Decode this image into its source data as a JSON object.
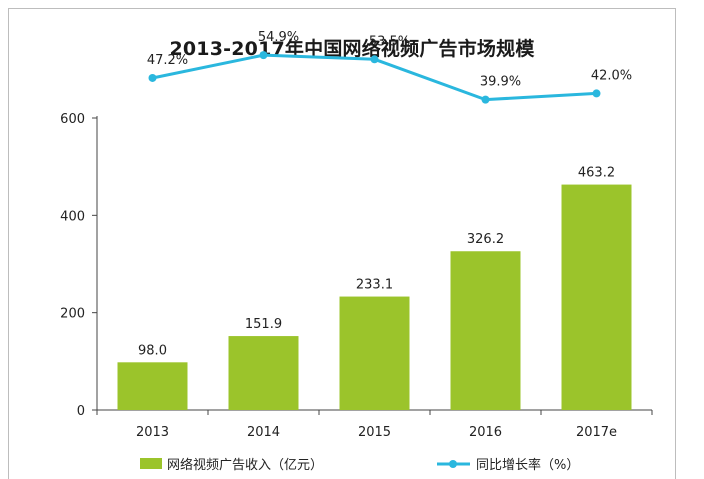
{
  "chart_data": {
    "type": "bar",
    "title": "2013-2017年中国网络视频广告市场规模",
    "categories": [
      "2013",
      "2014",
      "2015",
      "2016",
      "2017e"
    ],
    "ylim": [
      0,
      600
    ],
    "yticks": [
      0,
      200,
      400,
      600
    ],
    "grid": false,
    "legend_position": "bottom",
    "series": [
      {
        "name": "网络视频广告收入（亿元）",
        "type": "bar",
        "color": "#9bc42b",
        "values": [
          98.0,
          151.9,
          233.1,
          326.2,
          463.2
        ],
        "labels": [
          "98.0",
          "151.9",
          "233.1",
          "326.2",
          "463.2"
        ]
      },
      {
        "name": "同比增长率（%）",
        "type": "line",
        "color": "#2ab7de",
        "values": [
          47.2,
          54.9,
          53.5,
          39.9,
          42.0
        ],
        "labels": [
          "47.2%",
          "54.9%",
          "53.5%",
          "39.9%",
          "42.0%"
        ]
      }
    ]
  }
}
